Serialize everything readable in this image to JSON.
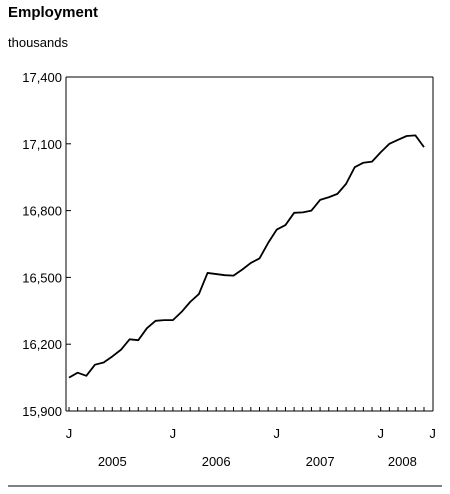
{
  "chart_data": {
    "type": "line",
    "title": "Employment",
    "ylabel": "thousands",
    "ylim": [
      15900,
      17400
    ],
    "yticks": [
      15900,
      16200,
      16500,
      16800,
      17100,
      17400
    ],
    "ytick_labels": [
      "15,900",
      "16,200",
      "16,500",
      "16,800",
      "17,100",
      "17,400"
    ],
    "xlim": [
      0,
      41
    ],
    "x_month_labels": [
      {
        "x": 0,
        "label": "J"
      },
      {
        "x": 12,
        "label": "J"
      },
      {
        "x": 24,
        "label": "J"
      },
      {
        "x": 36,
        "label": "J"
      },
      {
        "x": 42,
        "label": "J"
      }
    ],
    "x_year_labels": [
      {
        "x": 5,
        "label": "2005"
      },
      {
        "x": 17,
        "label": "2006"
      },
      {
        "x": 29,
        "label": "2007"
      },
      {
        "x": 38.5,
        "label": "2008"
      }
    ],
    "series": [
      {
        "x": [
          0,
          1,
          2,
          3,
          4,
          5,
          6,
          7,
          8,
          9,
          10,
          11,
          12,
          13,
          14,
          15,
          16,
          17,
          18,
          19,
          20,
          21,
          22,
          23,
          24,
          25,
          26,
          27,
          28,
          29,
          30,
          31,
          32,
          33,
          34,
          35,
          36,
          37,
          38,
          39,
          40,
          41
        ],
        "values": [
          16050,
          16072,
          16058,
          16108,
          16118,
          16145,
          16175,
          16222,
          16218,
          16272,
          16305,
          16308,
          16308,
          16345,
          16390,
          16425,
          16520,
          16515,
          16510,
          16508,
          16535,
          16565,
          16585,
          16655,
          16715,
          16735,
          16790,
          16792,
          16800,
          16848,
          16860,
          16875,
          16920,
          16995,
          17015,
          17020,
          17062,
          17100,
          17118,
          17135,
          17138,
          17085
        ]
      }
    ]
  }
}
